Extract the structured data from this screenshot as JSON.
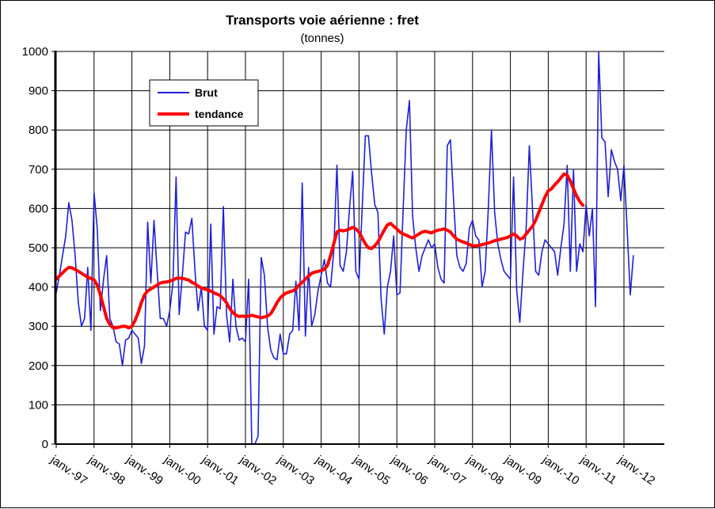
{
  "colors": {
    "brut": "#1f1fd6",
    "tendance": "#ff0000",
    "grid": "#000000"
  },
  "chart_data": {
    "type": "line",
    "title": "Transports voie aérienne : fret",
    "subtitle": "(tonnes)",
    "xlabel": "",
    "ylabel": "",
    "ylim": [
      0,
      1000
    ],
    "yticks": [
      0,
      100,
      200,
      300,
      400,
      500,
      600,
      700,
      800,
      900,
      1000
    ],
    "x_tick_labels": [
      "janv.-97",
      "janv.-98",
      "janv.-99",
      "janv.-00",
      "janv.-01",
      "janv.-02",
      "janv.-03",
      "janv.-04",
      "janv.-05",
      "janv.-06",
      "janv.-07",
      "janv.-08",
      "janv.-09",
      "janv.-10",
      "janv.-11",
      "janv.-12"
    ],
    "x_unit": "months since janv.-97",
    "grid": true,
    "legend_position": "top-left",
    "series": [
      {
        "name": "Brut",
        "values": [
          385,
          430,
          480,
          530,
          615,
          570,
          480,
          360,
          300,
          320,
          450,
          290,
          640,
          550,
          340,
          420,
          480,
          320,
          300,
          260,
          255,
          200,
          265,
          270,
          290,
          280,
          270,
          205,
          250,
          565,
          410,
          570,
          440,
          320,
          320,
          300,
          340,
          410,
          680,
          330,
          430,
          540,
          535,
          575,
          440,
          340,
          400,
          300,
          290,
          560,
          280,
          350,
          345,
          605,
          330,
          260,
          420,
          300,
          265,
          270,
          260,
          420,
          0,
          0,
          20,
          475,
          430,
          300,
          240,
          220,
          215,
          280,
          230,
          230,
          280,
          290,
          415,
          290,
          665,
          275,
          450,
          300,
          330,
          390,
          430,
          470,
          410,
          400,
          490,
          710,
          455,
          440,
          490,
          600,
          695,
          440,
          420,
          600,
          785,
          785,
          690,
          610,
          590,
          370,
          280,
          400,
          440,
          530,
          380,
          385,
          600,
          800,
          875,
          580,
          500,
          440,
          480,
          500,
          520,
          500,
          510,
          450,
          420,
          410,
          760,
          775,
          620,
          480,
          450,
          440,
          460,
          550,
          570,
          530,
          520,
          400,
          440,
          600,
          800,
          590,
          510,
          470,
          440,
          430,
          420,
          680,
          390,
          310,
          440,
          550,
          760,
          600,
          440,
          430,
          490,
          520,
          510,
          500,
          490,
          430,
          500,
          560,
          710,
          440,
          700,
          440,
          510,
          490,
          610,
          530,
          600,
          350,
          1000,
          780,
          770,
          630,
          750,
          720,
          700,
          620,
          710,
          550,
          380,
          480
        ]
      },
      {
        "name": "tendance",
        "values": [
          420,
          428,
          436,
          444,
          450,
          449,
          445,
          440,
          435,
          430,
          425,
          422,
          418,
          405,
          380,
          350,
          320,
          305,
          296,
          296,
          298,
          300,
          300,
          296,
          300,
          315,
          335,
          360,
          380,
          390,
          395,
          400,
          405,
          410,
          412,
          413,
          415,
          418,
          422,
          423,
          422,
          420,
          418,
          412,
          408,
          402,
          398,
          395,
          393,
          390,
          385,
          382,
          378,
          370,
          360,
          345,
          335,
          328,
          325,
          326,
          325,
          326,
          328,
          326,
          324,
          322,
          324,
          326,
          332,
          345,
          360,
          372,
          380,
          385,
          388,
          390,
          395,
          405,
          412,
          420,
          428,
          435,
          438,
          440,
          442,
          445,
          455,
          480,
          510,
          540,
          545,
          543,
          545,
          548,
          552,
          548,
          540,
          525,
          510,
          500,
          498,
          505,
          515,
          530,
          545,
          558,
          562,
          555,
          548,
          540,
          535,
          532,
          528,
          525,
          530,
          535,
          540,
          542,
          540,
          538,
          542,
          545,
          546,
          548,
          545,
          540,
          530,
          522,
          518,
          515,
          512,
          508,
          505,
          505,
          506,
          508,
          510,
          512,
          515,
          518,
          520,
          522,
          524,
          526,
          530,
          535,
          530,
          522,
          525,
          535,
          545,
          555,
          570,
          590,
          610,
          630,
          645,
          650,
          660,
          668,
          678,
          688,
          685,
          670,
          650,
          632,
          618,
          608
        ]
      }
    ]
  }
}
